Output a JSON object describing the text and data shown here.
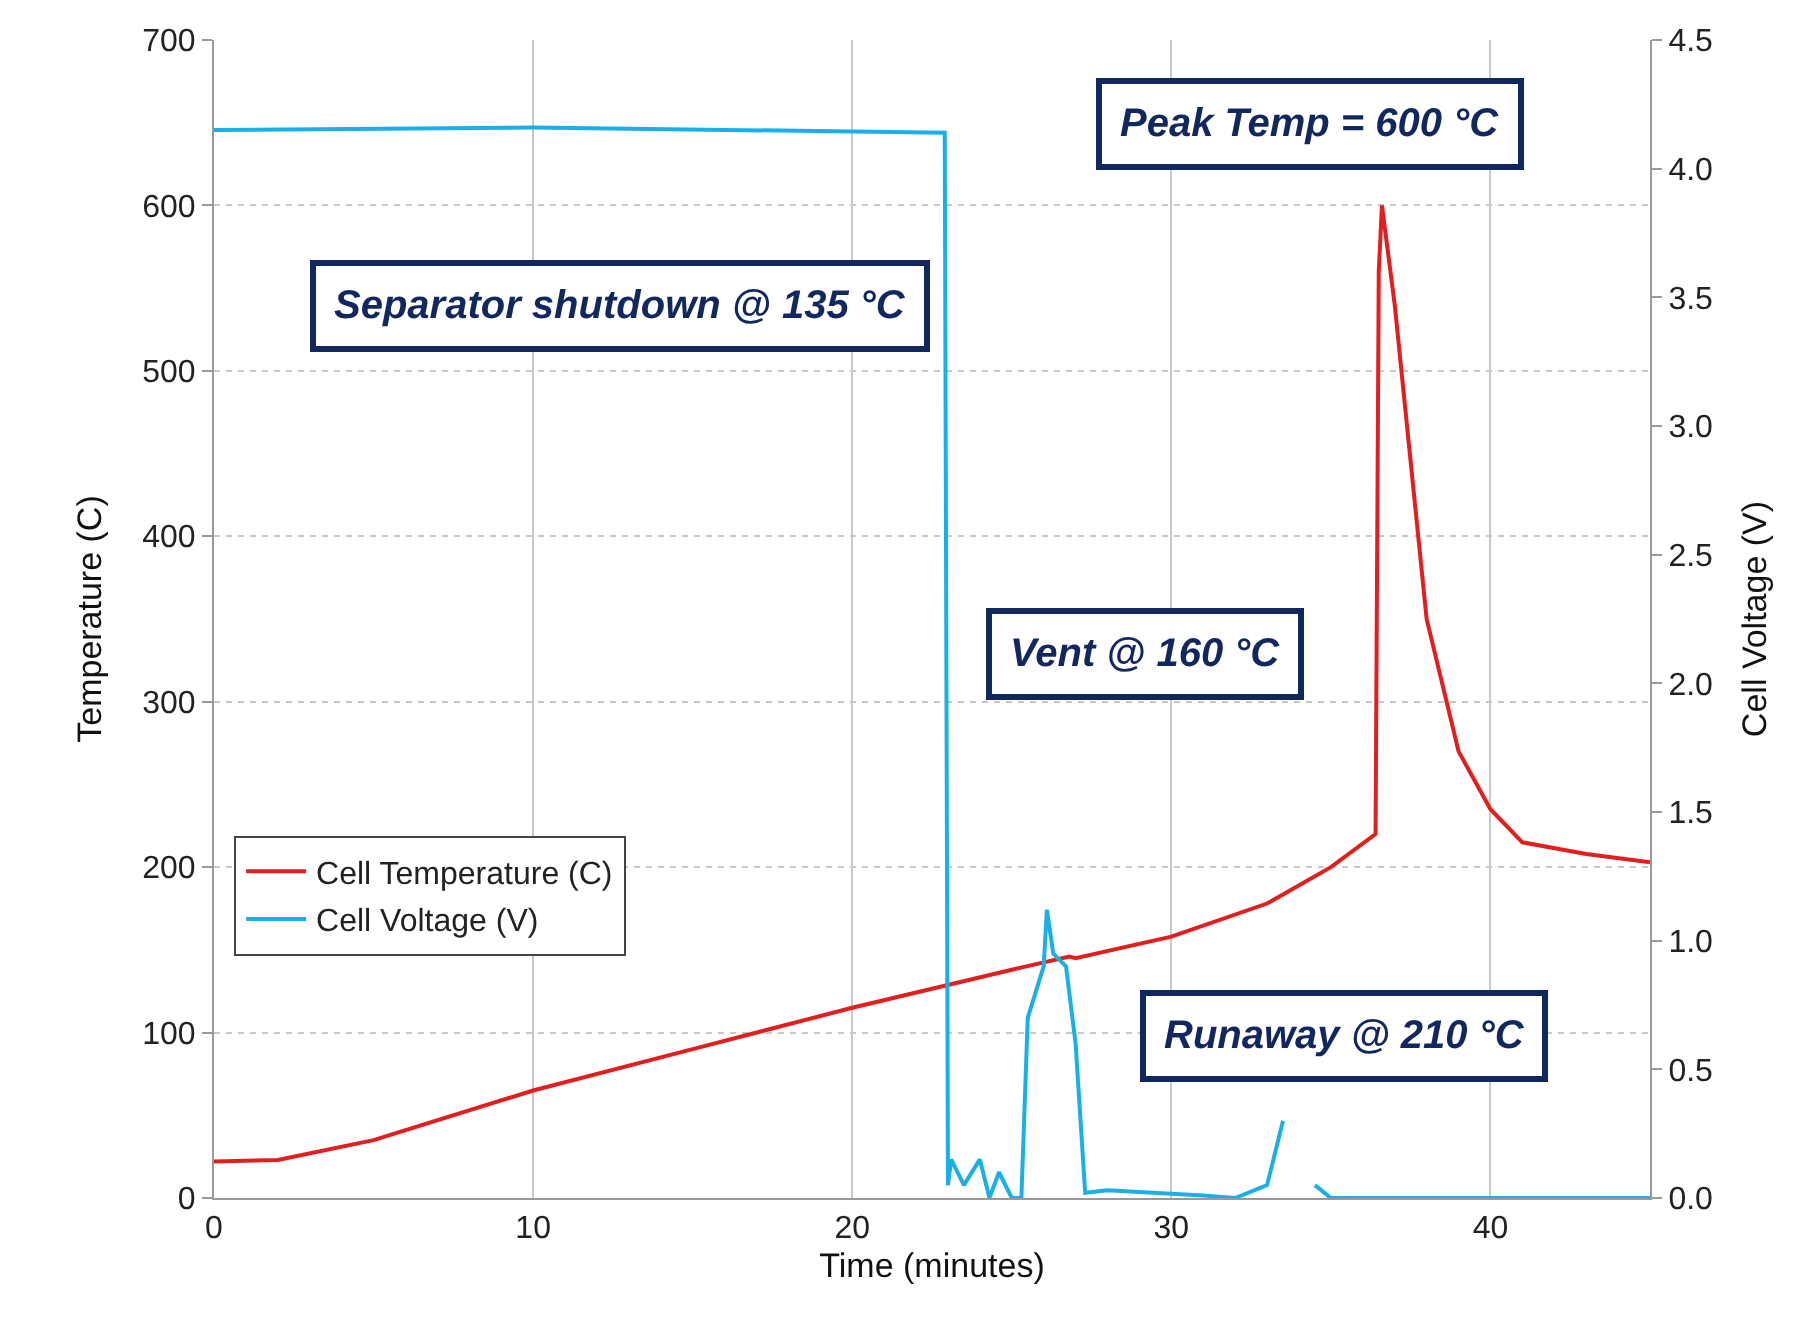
{
  "chart_data": {
    "type": "line",
    "xlabel": "Time (minutes)",
    "ylabel": "Temperature (C)",
    "y2label": "Cell Voltage (V)",
    "xlim": [
      0,
      45
    ],
    "xticks": [
      0,
      10,
      20,
      30,
      40
    ],
    "ylim": [
      0,
      700
    ],
    "yticks": [
      0,
      100,
      200,
      300,
      400,
      500,
      600,
      700
    ],
    "y2lim": [
      0,
      4.5
    ],
    "y2ticks": [
      {
        "value": 0,
        "label": "0.0"
      },
      0.5,
      {
        "value": 1,
        "label": "1.0"
      },
      1.5,
      {
        "value": 2,
        "label": "2.0"
      },
      2.5,
      {
        "value": 3,
        "label": "3.0"
      },
      3.5,
      {
        "value": 4,
        "label": "4.0"
      },
      4.5
    ],
    "grid": true,
    "legend": "bottom left",
    "marker": "none",
    "line_style": "solid",
    "annotations": [
      "Peak Temp = 600 °C",
      "Separator shutdown @ 135 °C",
      "Vent @ 160 °C",
      "Runaway @ 210 °C"
    ],
    "series": [
      {
        "name": "Cell Temperature (C)",
        "color": "#e41e1e",
        "x": [
          0,
          2,
          5,
          10,
          15,
          20,
          25,
          26.8,
          27,
          30,
          33,
          35,
          36.4,
          36.5,
          36.6,
          37,
          38,
          39,
          40,
          41,
          43,
          45
        ],
        "values": [
          22,
          23,
          35,
          65,
          90,
          115,
          138,
          146,
          145,
          158,
          178,
          200,
          220,
          560,
          600,
          540,
          350,
          270,
          235,
          215,
          208,
          203
        ]
      },
      {
        "name": "Cell Voltage (V)",
        "color": "#1ab0e6",
        "axis": "y2",
        "x": [
          0,
          10,
          22.9,
          23.0,
          23.1,
          23.5,
          24,
          24.3,
          24.6,
          25,
          25.3,
          25.5,
          26,
          26.1,
          26.3,
          26.7,
          27,
          27.3,
          28,
          31,
          32,
          33,
          33.5,
          33.8,
          34.5,
          35,
          45
        ],
        "values": [
          4.15,
          4.16,
          4.14,
          0.05,
          0.15,
          0.05,
          0.15,
          0.0,
          0.1,
          0.0,
          0.0,
          0.7,
          0.9,
          1.12,
          0.95,
          0.9,
          0.6,
          0.02,
          0.03,
          0.01,
          0.0,
          0.05,
          0.3,
          null,
          0.05,
          0.0,
          0.0
        ]
      }
    ]
  }
}
